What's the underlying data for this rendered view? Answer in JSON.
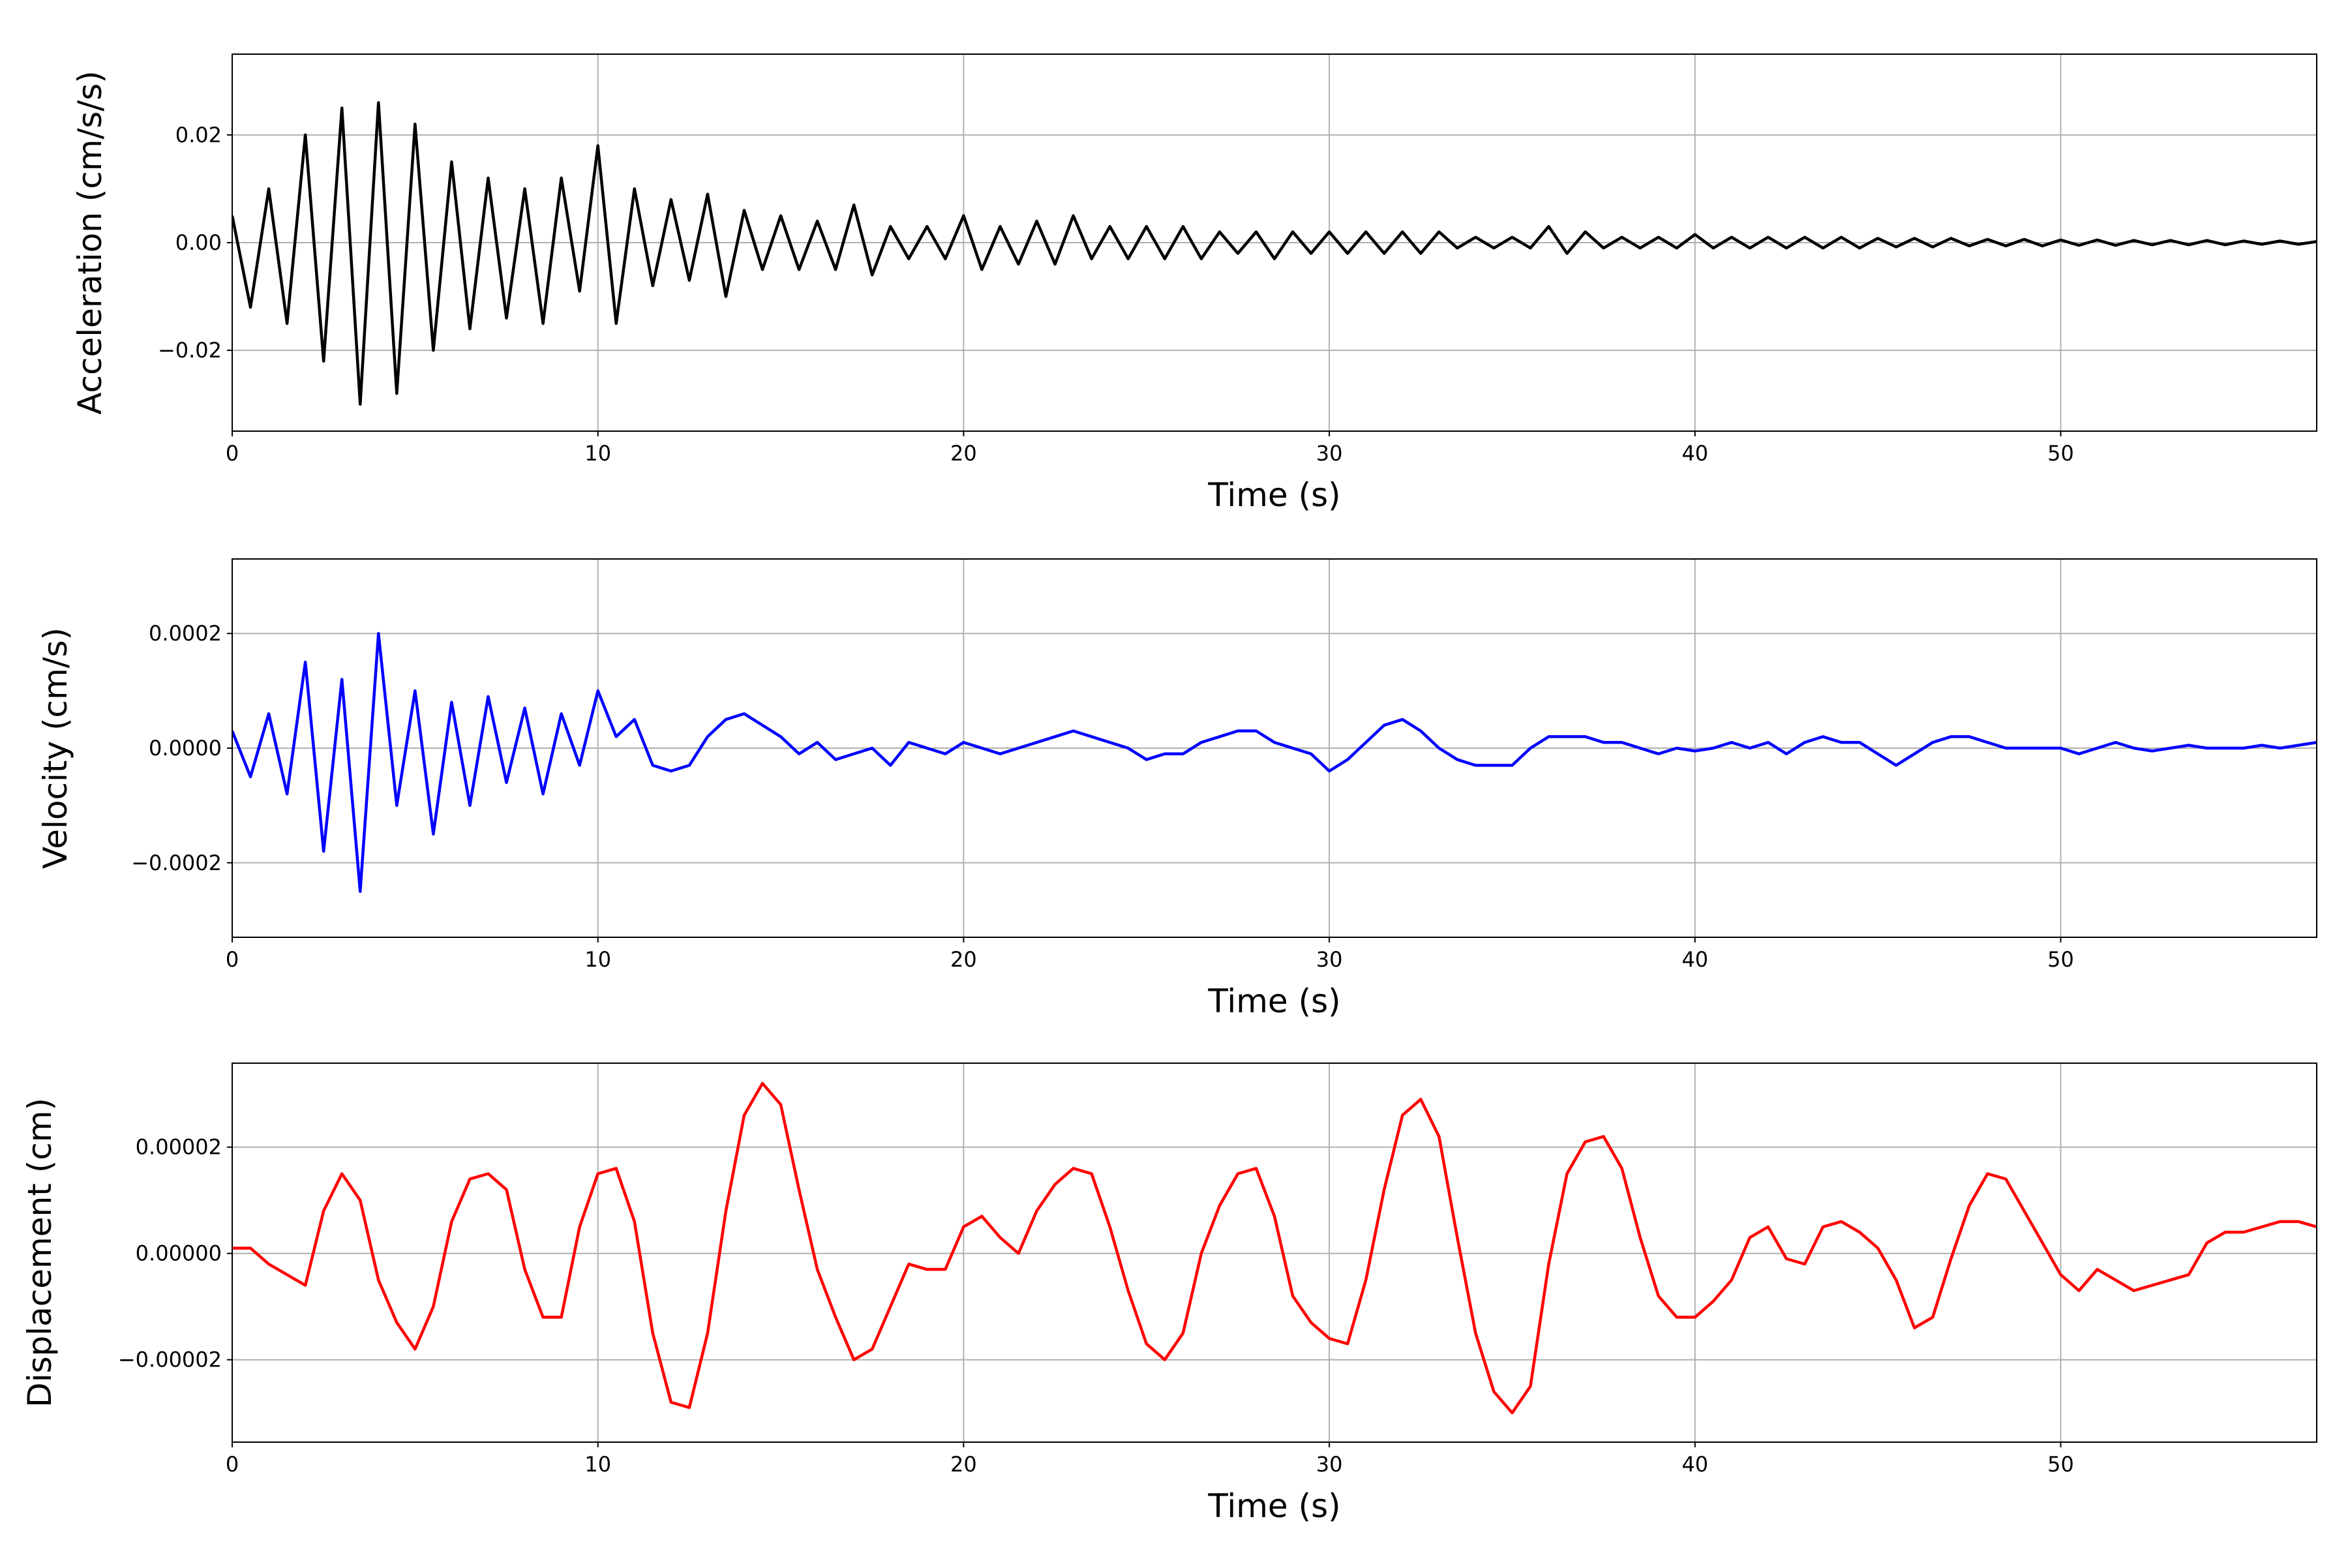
{
  "chart_data": [
    {
      "type": "line",
      "ylabel": "Acceleration (cm/s/s)",
      "xlabel": "Time (s)",
      "color": "#000000",
      "grid": true,
      "xlim": [
        0,
        57
      ],
      "xticks": [
        0,
        10,
        20,
        30,
        40,
        50
      ],
      "ylim": [
        -0.035,
        0.035
      ],
      "yticks": [
        {
          "value": -0.02,
          "label": "−0.02"
        },
        {
          "value": 0,
          "label": "0.00"
        },
        0.02
      ],
      "x": [
        0,
        0.5,
        1,
        1.5,
        2,
        2.5,
        3,
        3.5,
        4,
        4.5,
        5,
        5.5,
        6,
        6.5,
        7,
        7.5,
        8,
        8.5,
        9,
        9.5,
        10,
        10.5,
        11,
        11.5,
        12,
        12.5,
        13,
        13.5,
        14,
        14.5,
        15,
        15.5,
        16,
        16.5,
        17,
        17.5,
        18,
        18.5,
        19,
        19.5,
        20,
        20.5,
        21,
        21.5,
        22,
        22.5,
        23,
        23.5,
        24,
        24.5,
        25,
        25.5,
        26,
        26.5,
        27,
        27.5,
        28,
        28.5,
        29,
        29.5,
        30,
        30.5,
        31,
        31.5,
        32,
        32.5,
        33,
        33.5,
        34,
        34.5,
        35,
        35.5,
        36,
        36.5,
        37,
        37.5,
        38,
        38.5,
        39,
        39.5,
        40,
        40.5,
        41,
        41.5,
        42,
        42.5,
        43,
        43.5,
        44,
        44.5,
        45,
        45.5,
        46,
        46.5,
        47,
        47.5,
        48,
        48.5,
        49,
        49.5,
        50,
        50.5,
        51,
        51.5,
        52,
        52.5,
        53,
        53.5,
        54,
        54.5,
        55,
        55.5,
        56,
        56.5,
        57
      ],
      "values": [
        0.005,
        -0.012,
        0.01,
        -0.015,
        0.02,
        -0.022,
        0.025,
        -0.03,
        0.026,
        -0.028,
        0.022,
        -0.02,
        0.015,
        -0.016,
        0.012,
        -0.014,
        0.01,
        -0.015,
        0.012,
        -0.009,
        0.018,
        -0.015,
        0.01,
        -0.008,
        0.008,
        -0.007,
        0.009,
        -0.01,
        0.006,
        -0.005,
        0.005,
        -0.005,
        0.004,
        -0.005,
        0.007,
        -0.006,
        0.003,
        -0.003,
        0.003,
        -0.003,
        0.005,
        -0.005,
        0.003,
        -0.004,
        0.004,
        -0.004,
        0.005,
        -0.003,
        0.003,
        -0.003,
        0.003,
        -0.003,
        0.003,
        -0.003,
        0.002,
        -0.002,
        0.002,
        -0.003,
        0.002,
        -0.002,
        0.002,
        -0.002,
        0.002,
        -0.002,
        0.002,
        -0.002,
        0.002,
        -0.001,
        0.001,
        -0.001,
        0.001,
        -0.001,
        0.003,
        -0.002,
        0.002,
        -0.001,
        0.001,
        -0.001,
        0.001,
        -0.001,
        0.0015,
        -0.001,
        0.001,
        -0.001,
        0.001,
        -0.001,
        0.001,
        -0.001,
        0.001,
        -0.001,
        0.0008,
        -0.0008,
        0.0008,
        -0.0008,
        0.0008,
        -0.0006,
        0.0006,
        -0.0006,
        0.0006,
        -0.0006,
        0.0005,
        -0.0005,
        0.0005,
        -0.0005,
        0.0004,
        -0.0004,
        0.0004,
        -0.0004,
        0.0004,
        -0.0004,
        0.0003,
        -0.0003,
        0.0003,
        -0.0003,
        0.0002
      ]
    },
    {
      "type": "line",
      "ylabel": "Velocity (cm/s)",
      "xlabel": "Time (s)",
      "color": "#0000ff",
      "grid": true,
      "xlim": [
        0,
        57
      ],
      "xticks": [
        0,
        10,
        20,
        30,
        40,
        50
      ],
      "ylim": [
        -0.00033,
        0.00033
      ],
      "yticks": [
        {
          "value": -0.0002,
          "label": "−0.0002"
        },
        {
          "value": 0,
          "label": "0.0000"
        },
        0.0002
      ],
      "x": [
        0,
        0.5,
        1,
        1.5,
        2,
        2.5,
        3,
        3.5,
        4,
        4.5,
        5,
        5.5,
        6,
        6.5,
        7,
        7.5,
        8,
        8.5,
        9,
        9.5,
        10,
        10.5,
        11,
        11.5,
        12,
        12.5,
        13,
        13.5,
        14,
        14.5,
        15,
        15.5,
        16,
        16.5,
        17,
        17.5,
        18,
        18.5,
        19,
        19.5,
        20,
        20.5,
        21,
        21.5,
        22,
        22.5,
        23,
        23.5,
        24,
        24.5,
        25,
        25.5,
        26,
        26.5,
        27,
        27.5,
        28,
        28.5,
        29,
        29.5,
        30,
        30.5,
        31,
        31.5,
        32,
        32.5,
        33,
        33.5,
        34,
        34.5,
        35,
        35.5,
        36,
        36.5,
        37,
        37.5,
        38,
        38.5,
        39,
        39.5,
        40,
        40.5,
        41,
        41.5,
        42,
        42.5,
        43,
        43.5,
        44,
        44.5,
        45,
        45.5,
        46,
        46.5,
        47,
        47.5,
        48,
        48.5,
        49,
        49.5,
        50,
        50.5,
        51,
        51.5,
        52,
        52.5,
        53,
        53.5,
        54,
        54.5,
        55,
        55.5,
        56,
        56.5,
        57
      ],
      "values": [
        3e-05,
        -5e-05,
        6e-05,
        -8e-05,
        0.00015,
        -0.00018,
        0.00012,
        -0.00025,
        0.0002,
        -0.0001,
        0.0001,
        -0.00015,
        8e-05,
        -0.0001,
        9e-05,
        -6e-05,
        7e-05,
        -8e-05,
        6e-05,
        -3e-05,
        0.0001,
        2e-05,
        5e-05,
        -3e-05,
        -4e-05,
        -3e-05,
        2e-05,
        5e-05,
        6e-05,
        4e-05,
        2e-05,
        -1e-05,
        1e-05,
        -2e-05,
        -1e-05,
        0,
        -3e-05,
        1e-05,
        0,
        -1e-05,
        1e-05,
        0,
        -1e-05,
        0,
        1e-05,
        2e-05,
        3e-05,
        2e-05,
        1e-05,
        0,
        -2e-05,
        -1e-05,
        -1e-05,
        1e-05,
        2e-05,
        3e-05,
        3e-05,
        1e-05,
        0,
        -1e-05,
        -4e-05,
        -2e-05,
        1e-05,
        4e-05,
        5e-05,
        3e-05,
        0,
        -2e-05,
        -3e-05,
        -3e-05,
        -3e-05,
        0,
        2e-05,
        2e-05,
        2e-05,
        1e-05,
        1e-05,
        0,
        -1e-05,
        0,
        -5e-06,
        0,
        1e-05,
        0,
        1e-05,
        -1e-05,
        1e-05,
        2e-05,
        1e-05,
        1e-05,
        -1e-05,
        -3e-05,
        -1e-05,
        1e-05,
        2e-05,
        2e-05,
        1e-05,
        0,
        0,
        0,
        0,
        -1e-05,
        0,
        1e-05,
        0,
        -5e-06,
        0,
        5e-06,
        0,
        0,
        0,
        5e-06,
        0,
        5e-06,
        1e-05
      ]
    },
    {
      "type": "line",
      "ylabel": "Displacement (cm)",
      "xlabel": "Time (s)",
      "color": "#ff0000",
      "grid": true,
      "xlim": [
        0,
        57
      ],
      "xticks": [
        0,
        10,
        20,
        30,
        40,
        50
      ],
      "ylim": [
        -3.55e-05,
        3.58e-05
      ],
      "yticks": [
        {
          "value": -2e-05,
          "label": "−0.00002"
        },
        {
          "value": 0,
          "label": "0.00000"
        },
        {
          "value": 2e-05,
          "label": "0.00002"
        }
      ],
      "x": [
        0,
        0.5,
        1,
        1.5,
        2,
        2.5,
        3,
        3.5,
        4,
        4.5,
        5,
        5.5,
        6,
        6.5,
        7,
        7.5,
        8,
        8.5,
        9,
        9.5,
        10,
        10.5,
        11,
        11.5,
        12,
        12.5,
        13,
        13.5,
        14,
        14.5,
        15,
        15.5,
        16,
        16.5,
        17,
        17.5,
        18,
        18.5,
        19,
        19.5,
        20,
        20.5,
        21,
        21.5,
        22,
        22.5,
        23,
        23.5,
        24,
        24.5,
        25,
        25.5,
        26,
        26.5,
        27,
        27.5,
        28,
        28.5,
        29,
        29.5,
        30,
        30.5,
        31,
        31.5,
        32,
        32.5,
        33,
        33.5,
        34,
        34.5,
        35,
        35.5,
        36,
        36.5,
        37,
        37.5,
        38,
        38.5,
        39,
        39.5,
        40,
        40.5,
        41,
        41.5,
        42,
        42.5,
        43,
        43.5,
        44,
        44.5,
        45,
        45.5,
        46,
        46.5,
        47,
        47.5,
        48,
        48.5,
        49,
        49.5,
        50,
        50.5,
        51,
        51.5,
        52,
        52.5,
        53,
        53.5,
        54,
        54.5,
        55,
        55.5,
        56,
        56.5,
        57
      ],
      "values": [
        1e-06,
        1e-06,
        -2e-06,
        -4e-06,
        -6e-06,
        8e-06,
        1.5e-05,
        1e-05,
        -5e-06,
        -1.3e-05,
        -1.8e-05,
        -1e-05,
        6e-06,
        1.4e-05,
        1.5e-05,
        1.2e-05,
        -3e-06,
        -1.2e-05,
        -1.2e-05,
        5e-06,
        1.5e-05,
        1.6e-05,
        6e-06,
        -1.5e-05,
        -2.8e-05,
        -2.9e-05,
        -1.5e-05,
        8e-06,
        2.6e-05,
        3.2e-05,
        2.8e-05,
        1.2e-05,
        -3e-06,
        -1.2e-05,
        -2e-05,
        -1.8e-05,
        -1e-05,
        -2e-06,
        -3e-06,
        -3e-06,
        5e-06,
        7e-06,
        3e-06,
        0,
        8e-06,
        1.3e-05,
        1.6e-05,
        1.5e-05,
        5e-06,
        -7e-06,
        -1.7e-05,
        -2e-05,
        -1.5e-05,
        0,
        9e-06,
        1.5e-05,
        1.6e-05,
        7e-06,
        -8e-06,
        -1.3e-05,
        -1.6e-05,
        -1.7e-05,
        -5e-06,
        1.2e-05,
        2.6e-05,
        2.9e-05,
        2.2e-05,
        3e-06,
        -1.5e-05,
        -2.6e-05,
        -3e-05,
        -2.5e-05,
        -2e-06,
        1.5e-05,
        2.1e-05,
        2.2e-05,
        1.6e-05,
        3e-06,
        -8e-06,
        -1.2e-05,
        -1.2e-05,
        -9e-06,
        -5e-06,
        3e-06,
        5e-06,
        -1e-06,
        -2e-06,
        5e-06,
        6e-06,
        4e-06,
        1e-06,
        -5e-06,
        -1.4e-05,
        -1.2e-05,
        -1e-06,
        9e-06,
        1.5e-05,
        1.4e-05,
        8e-06,
        2e-06,
        -4e-06,
        -7e-06,
        -3e-06,
        -5e-06,
        -7e-06,
        -6e-06,
        -5e-06,
        -4e-06,
        2e-06,
        4e-06,
        4e-06,
        5e-06,
        6e-06,
        6e-06,
        5e-06
      ]
    }
  ]
}
